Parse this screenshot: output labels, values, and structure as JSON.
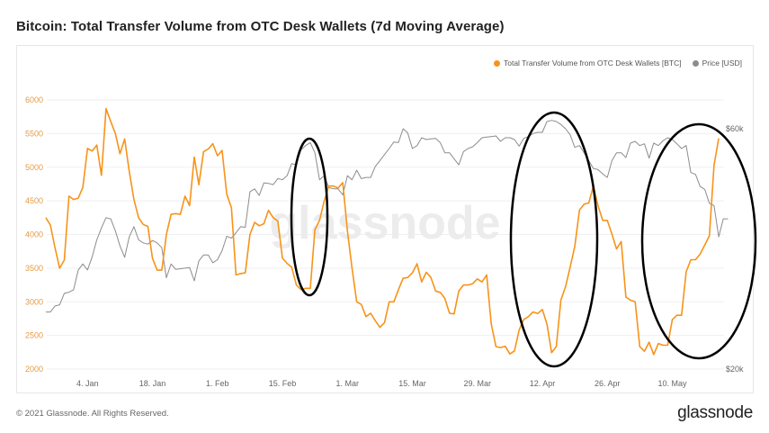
{
  "title": "Bitcoin: Total Transfer Volume from OTC Desk Wallets (7d Moving Average)",
  "footer": {
    "copyright": "© 2021 Glassnode. All Rights Reserved.",
    "logo_text": "glassnode"
  },
  "watermark": "glassnode",
  "colors": {
    "volume": "#f7931a",
    "price": "#8c8c8c",
    "annotation": "#000000",
    "left_axis_text": "#e39b45"
  },
  "chart_data": {
    "type": "line",
    "title": "Bitcoin: Total Transfer Volume from OTC Desk Wallets (7d Moving Average)",
    "legend_position": "top-right",
    "grid": true,
    "x_ticks": [
      {
        "date": "2021-01-04",
        "label": "4. Jan"
      },
      {
        "date": "2021-01-18",
        "label": "18. Jan"
      },
      {
        "date": "2021-02-01",
        "label": "1. Feb"
      },
      {
        "date": "2021-02-15",
        "label": "15. Feb"
      },
      {
        "date": "2021-03-01",
        "label": "1. Mar"
      },
      {
        "date": "2021-03-15",
        "label": "15. Mar"
      },
      {
        "date": "2021-03-29",
        "label": "29. Mar"
      },
      {
        "date": "2021-04-12",
        "label": "12. Apr"
      },
      {
        "date": "2021-04-26",
        "label": "26. Apr"
      },
      {
        "date": "2021-05-10",
        "label": "10. May"
      }
    ],
    "y_left": {
      "range": [
        2000,
        6000
      ],
      "ticks": [
        "6000",
        "5500",
        "5000",
        "4500",
        "4000",
        "3500",
        "3000",
        "2500",
        "2000"
      ]
    },
    "y_right": {
      "range": [
        20000,
        60000
      ],
      "ticks": [
        {
          "value": 60000,
          "label": "$60k"
        },
        {
          "value": 20000,
          "label": "$20k"
        }
      ]
    },
    "x": [
      "2020-12-26",
      "2020-12-27",
      "2020-12-28",
      "2020-12-29",
      "2020-12-30",
      "2020-12-31",
      "2021-01-01",
      "2021-01-02",
      "2021-01-03",
      "2021-01-04",
      "2021-01-05",
      "2021-01-06",
      "2021-01-07",
      "2021-01-08",
      "2021-01-09",
      "2021-01-10",
      "2021-01-11",
      "2021-01-12",
      "2021-01-13",
      "2021-01-14",
      "2021-01-15",
      "2021-01-16",
      "2021-01-17",
      "2021-01-18",
      "2021-01-19",
      "2021-01-20",
      "2021-01-21",
      "2021-01-22",
      "2021-01-23",
      "2021-01-24",
      "2021-01-25",
      "2021-01-26",
      "2021-01-27",
      "2021-01-28",
      "2021-01-29",
      "2021-01-30",
      "2021-01-31",
      "2021-02-01",
      "2021-02-02",
      "2021-02-03",
      "2021-02-04",
      "2021-02-05",
      "2021-02-06",
      "2021-02-07",
      "2021-02-08",
      "2021-02-09",
      "2021-02-10",
      "2021-02-11",
      "2021-02-12",
      "2021-02-13",
      "2021-02-14",
      "2021-02-15",
      "2021-02-16",
      "2021-02-17",
      "2021-02-18",
      "2021-02-19",
      "2021-02-20",
      "2021-02-21",
      "2021-02-22",
      "2021-02-23",
      "2021-02-24",
      "2021-02-25",
      "2021-02-26",
      "2021-02-27",
      "2021-02-28",
      "2021-03-01",
      "2021-03-02",
      "2021-03-03",
      "2021-03-04",
      "2021-03-05",
      "2021-03-06",
      "2021-03-07",
      "2021-03-08",
      "2021-03-09",
      "2021-03-10",
      "2021-03-11",
      "2021-03-12",
      "2021-03-13",
      "2021-03-14",
      "2021-03-15",
      "2021-03-16",
      "2021-03-17",
      "2021-03-18",
      "2021-03-19",
      "2021-03-20",
      "2021-03-21",
      "2021-03-22",
      "2021-03-23",
      "2021-03-24",
      "2021-03-25",
      "2021-03-26",
      "2021-03-27",
      "2021-03-28",
      "2021-03-29",
      "2021-03-30",
      "2021-03-31",
      "2021-04-01",
      "2021-04-02",
      "2021-04-03",
      "2021-04-04",
      "2021-04-05",
      "2021-04-06",
      "2021-04-07",
      "2021-04-08",
      "2021-04-09",
      "2021-04-10",
      "2021-04-11",
      "2021-04-12",
      "2021-04-13",
      "2021-04-14",
      "2021-04-15",
      "2021-04-16",
      "2021-04-17",
      "2021-04-18",
      "2021-04-19",
      "2021-04-20",
      "2021-04-21",
      "2021-04-22",
      "2021-04-23",
      "2021-04-24",
      "2021-04-25",
      "2021-04-26",
      "2021-04-27",
      "2021-04-28",
      "2021-04-29",
      "2021-04-30",
      "2021-05-01",
      "2021-05-02",
      "2021-05-03",
      "2021-05-04",
      "2021-05-05",
      "2021-05-06",
      "2021-05-07",
      "2021-05-08",
      "2021-05-09",
      "2021-05-10",
      "2021-05-11",
      "2021-05-12",
      "2021-05-13",
      "2021-05-14",
      "2021-05-15",
      "2021-05-16",
      "2021-05-17",
      "2021-05-18",
      "2021-05-19",
      "2021-05-20",
      "2021-05-21",
      "2021-05-22"
    ],
    "series": [
      {
        "name": "Total Transfer Volume from OTC Desk Wallets [BTC]",
        "axis": "left",
        "values": [
          4250,
          4140,
          3800,
          3500,
          3620,
          4570,
          4520,
          4540,
          4700,
          5280,
          5240,
          5330,
          4880,
          5870,
          5680,
          5500,
          5200,
          5420,
          4940,
          4520,
          4250,
          4150,
          4120,
          3650,
          3470,
          3470,
          4000,
          4300,
          4310,
          4300,
          4570,
          4430,
          5150,
          4740,
          5230,
          5270,
          5350,
          5170,
          5250,
          4600,
          4400,
          3400,
          3420,
          3430,
          4000,
          4180,
          4130,
          4160,
          4360,
          4250,
          4200,
          3650,
          3570,
          3515,
          3250,
          3180,
          3200,
          3200,
          4070,
          4210,
          4500,
          4720,
          4720,
          4690,
          4770,
          4050,
          3500,
          3000,
          2960,
          2780,
          2830,
          2720,
          2620,
          2690,
          3000,
          3000,
          3180,
          3350,
          3360,
          3430,
          3565,
          3295,
          3440,
          3360,
          3160,
          3140,
          3050,
          2830,
          2820,
          3160,
          3250,
          3250,
          3270,
          3340,
          3295,
          3400,
          2670,
          2335,
          2320,
          2340,
          2225,
          2270,
          2580,
          2735,
          2780,
          2850,
          2825,
          2885,
          2670,
          2245,
          2335,
          3025,
          3225,
          3515,
          3825,
          4365,
          4450,
          4470,
          4720,
          4430,
          4210,
          4210,
          4005,
          3785,
          3895,
          3070,
          3025,
          3000,
          2335,
          2265,
          2400,
          2215,
          2380,
          2355,
          2355,
          2735,
          2800,
          2800,
          3445,
          3625,
          3625,
          3710,
          3845,
          3980,
          5030,
          5430,
          null,
          null
        ]
      },
      {
        "name": "Price [USD]",
        "axis": "right",
        "values": [
          29500,
          29500,
          30500,
          30700,
          32600,
          32800,
          33200,
          36500,
          37500,
          36500,
          38700,
          41500,
          43500,
          45200,
          45000,
          43000,
          40500,
          38600,
          42000,
          43700,
          41500,
          41000,
          40800,
          41400,
          41000,
          40200,
          35200,
          37500,
          36600,
          36700,
          36800,
          36900,
          34700,
          38000,
          39000,
          39000,
          37700,
          38200,
          39700,
          42100,
          41800,
          42700,
          43700,
          43600,
          49500,
          50000,
          48900,
          51000,
          50900,
          50700,
          51700,
          51500,
          52200,
          54200,
          54000,
          56500,
          57200,
          57700,
          56000,
          51500,
          52200,
          50200,
          50000,
          50000,
          49000,
          52200,
          51500,
          53100,
          51700,
          51900,
          51900,
          53700,
          54700,
          55700,
          56700,
          57800,
          57700,
          60000,
          59300,
          56700,
          57200,
          58500,
          58200,
          58300,
          58400,
          57700,
          56000,
          56000,
          55000,
          54000,
          56200,
          56700,
          57000,
          57700,
          58500,
          58600,
          58700,
          58800,
          57900,
          58500,
          58500,
          58200,
          57100,
          58400,
          58700,
          59200,
          59400,
          59400,
          61200,
          61400,
          61200,
          60700,
          60000,
          59000,
          56900,
          57200,
          56000,
          54700,
          53400,
          53200,
          52500,
          51900,
          54700,
          56000,
          56000,
          55200,
          57600,
          57900,
          57200,
          57500,
          55100,
          57600,
          57200,
          58000,
          58500,
          58200,
          57500,
          56700,
          57200,
          52700,
          52400,
          50400,
          49900,
          47600,
          47200,
          42000,
          45000,
          45000
        ]
      }
    ]
  }
}
